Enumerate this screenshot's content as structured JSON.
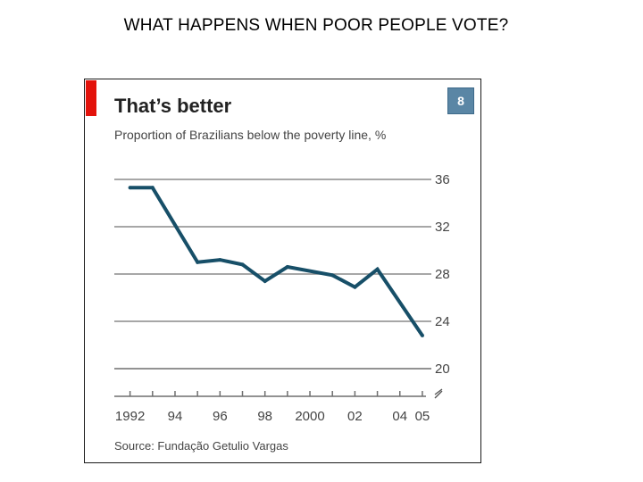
{
  "slide": {
    "title": "WHAT HAPPENS WHEN POOR PEOPLE VOTE?"
  },
  "chart_data": {
    "type": "line",
    "title": "That’s better",
    "subtitle": "Proportion of Brazilians below the poverty line, %",
    "badge": "8",
    "source": "Source: Fundação Getulio Vargas",
    "x": [
      1992,
      1993,
      1995,
      1996,
      1997,
      1998,
      1999,
      2001,
      2002,
      2003,
      2005
    ],
    "x_tick_labels": [
      {
        "year": 1992,
        "label": "1992"
      },
      {
        "year": 1994,
        "label": "94"
      },
      {
        "year": 1996,
        "label": "96"
      },
      {
        "year": 1998,
        "label": "98"
      },
      {
        "year": 2000,
        "label": "2000"
      },
      {
        "year": 2002,
        "label": "02"
      },
      {
        "year": 2004,
        "label": "04"
      },
      {
        "year": 2005,
        "label": "05"
      }
    ],
    "x_ticks": [
      1992,
      1993,
      1994,
      1995,
      1996,
      1997,
      1998,
      1999,
      2000,
      2001,
      2002,
      2003,
      2004,
      2005
    ],
    "xlim": [
      1991.3,
      2005.4
    ],
    "series": [
      {
        "values": [
          35.3,
          35.3,
          29.0,
          29.2,
          28.8,
          27.4,
          28.6,
          27.9,
          26.9,
          28.4,
          22.8
        ],
        "color": "#174f68"
      }
    ],
    "y_ticks": [
      36,
      32,
      28,
      24,
      20
    ],
    "ylim": [
      20,
      36
    ],
    "y_axis_position": "right",
    "y_axis_break": true,
    "grid": true
  }
}
